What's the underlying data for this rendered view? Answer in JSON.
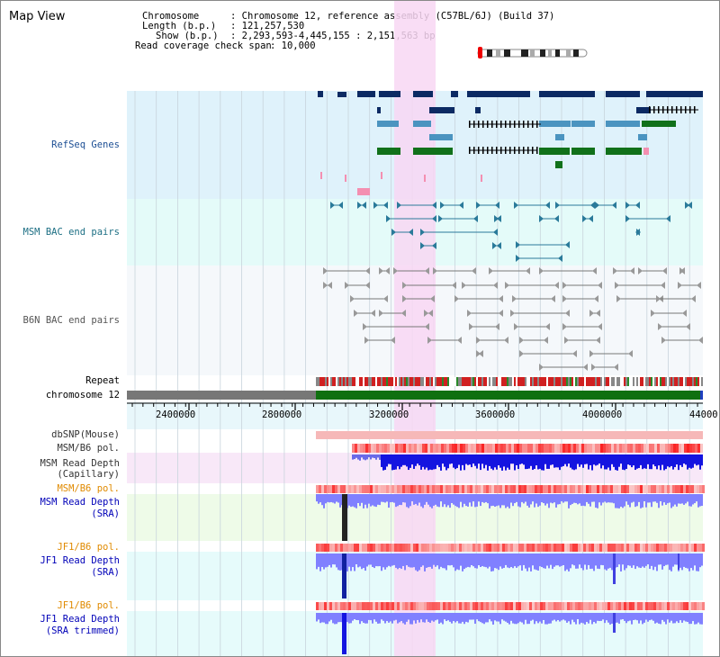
{
  "app": {
    "title": "Map View"
  },
  "info": {
    "chromosome_label": "Chromosome",
    "chromosome_value": ": Chromosome 12, reference assembly (C57BL/6J) (Build 37)",
    "length_label": "Length (b.p.)",
    "length_value": ": 121,257,530",
    "show_label": "Show (b.p.)",
    "show_value": ": 2,293,593-4,445,155 : 2,151,563 bp",
    "coverage_label": "Read coverage check span",
    "coverage_value": ": 10,000"
  },
  "tracks": {
    "refseq": "RefSeq Genes",
    "msm_bac": "MSM BAC end pairs",
    "b6n_bac": "B6N BAC end pairs",
    "repeat": "Repeat",
    "chromosome": "chromosome 12",
    "dbsnp": "dbSNP(Mouse)",
    "msm_b6_pol_1": "MSM/B6 pol.",
    "msm_depth_cap_1": "MSM Read Depth",
    "msm_depth_cap_2": "(Capillary)",
    "msm_b6_pol_2": "MSM/B6 pol.",
    "msm_depth_sra_1": "MSM Read Depth",
    "msm_depth_sra_2": "(SRA)",
    "jf1_b6_pol_1": "JF1/B6 pol.",
    "jf1_depth_sra_1": "JF1 Read Depth",
    "jf1_depth_sra_2": "(SRA)",
    "jf1_b6_pol_2": "JF1/B6 pol.",
    "jf1_depth_trim_1": "JF1 Read Depth",
    "jf1_depth_trim_2": "(SRA trimmed)"
  },
  "axis": {
    "ticks": [
      "2400000",
      "2800000",
      "3200000",
      "3600000",
      "4000000",
      "44000"
    ]
  },
  "colors": {
    "refseq_bg": "#dff2fb",
    "msm_bg": "#e4fbf9",
    "b6n_bg": "#f5f8fb",
    "highlight": "#f8d7f3",
    "gene_navy": "#0c2a63",
    "gene_blue": "#4b94c0",
    "gene_green": "#11711a",
    "msm_pair": "#2a7a9a",
    "b6n_pair": "#777777",
    "chrom_gray": "#777777",
    "chrom_green": "#0f7010",
    "msm_label": "#1d4f94",
    "pol_label": "#e08a00",
    "depth_label": "#0000b8",
    "depth_fill": "#8080ff"
  }
}
